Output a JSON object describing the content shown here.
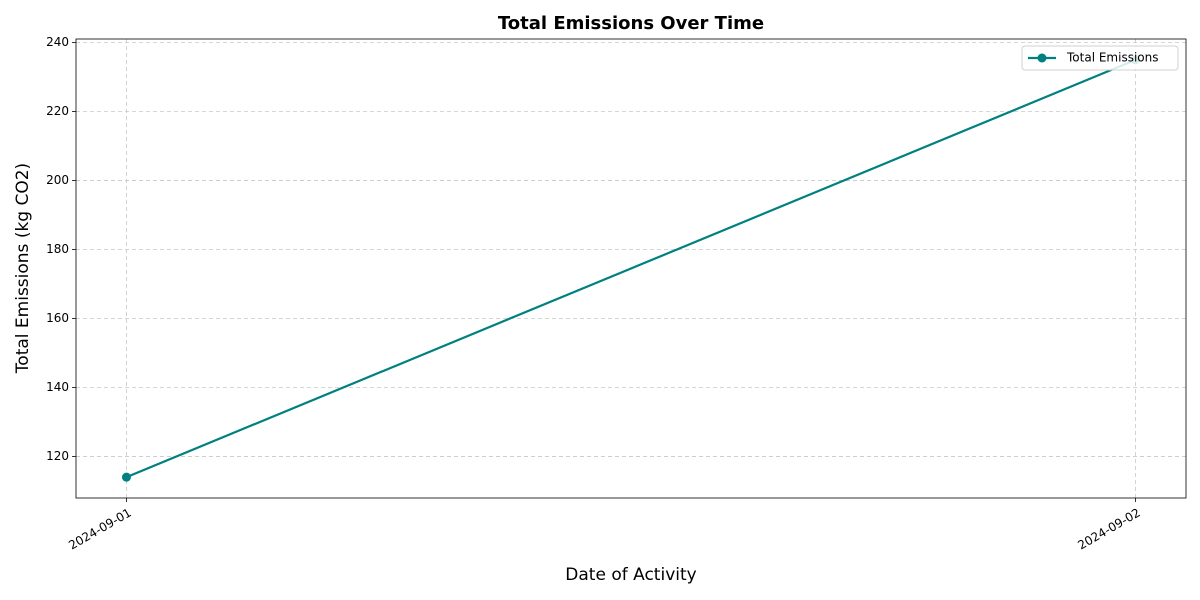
{
  "chart_data": {
    "type": "line",
    "title": "Total Emissions Over Time",
    "x_label": "Date of Activity",
    "y_label": "Total Emissions (kg CO2)",
    "x": [
      "2024-09-01",
      "2024-09-02"
    ],
    "series": [
      {
        "name": "Total Emissions",
        "color": "#008080",
        "values": [
          114,
          235
        ]
      }
    ],
    "ylim": [
      107.95,
      241.05
    ],
    "yticks": [
      120,
      140,
      160,
      180,
      200,
      220,
      240
    ],
    "grid": true,
    "legend": "upper right"
  }
}
